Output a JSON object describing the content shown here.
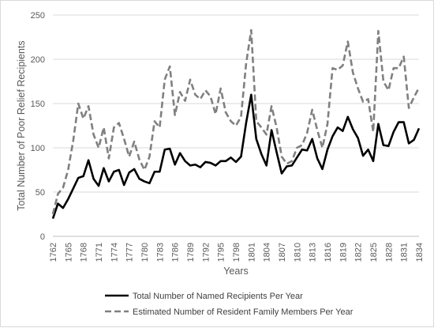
{
  "chart_data": {
    "type": "line",
    "title": "",
    "xlabel": "Years",
    "ylabel": "Total Number of Poor Relief Recipients",
    "ylim": [
      0,
      250
    ],
    "yticks": [
      0,
      50,
      100,
      150,
      200,
      250
    ],
    "xlim": [
      1762,
      1834
    ],
    "xticks": [
      1762,
      1765,
      1768,
      1771,
      1774,
      1777,
      1780,
      1783,
      1786,
      1789,
      1792,
      1795,
      1798,
      1801,
      1804,
      1807,
      1810,
      1813,
      1816,
      1819,
      1822,
      1825,
      1828,
      1831,
      1834
    ],
    "grid": true,
    "legend_position": "bottom",
    "x": [
      1762,
      1763,
      1764,
      1765,
      1766,
      1767,
      1768,
      1769,
      1770,
      1771,
      1772,
      1773,
      1774,
      1775,
      1776,
      1777,
      1778,
      1779,
      1780,
      1781,
      1782,
      1783,
      1784,
      1785,
      1786,
      1787,
      1788,
      1789,
      1790,
      1791,
      1792,
      1793,
      1794,
      1795,
      1796,
      1797,
      1798,
      1799,
      1800,
      1801,
      1802,
      1803,
      1804,
      1805,
      1806,
      1807,
      1808,
      1809,
      1810,
      1811,
      1812,
      1813,
      1814,
      1815,
      1816,
      1817,
      1818,
      1819,
      1820,
      1821,
      1822,
      1823,
      1824,
      1825,
      1826,
      1827,
      1828,
      1829,
      1830,
      1831,
      1832,
      1833,
      1834
    ],
    "series": [
      {
        "name": "Total Number of Named Recipients Per Year",
        "color": "#000000",
        "style": "solid",
        "values": [
          20,
          37,
          32,
          42,
          54,
          66,
          68,
          86,
          65,
          57,
          77,
          62,
          73,
          75,
          58,
          72,
          76,
          65,
          62,
          60,
          73,
          73,
          98,
          99,
          81,
          94,
          85,
          80,
          81,
          78,
          84,
          83,
          80,
          85,
          85,
          89,
          84,
          90,
          128,
          160,
          110,
          93,
          80,
          120,
          95,
          71,
          79,
          80,
          89,
          98,
          97,
          110,
          88,
          76,
          98,
          113,
          123,
          119,
          135,
          121,
          111,
          91,
          98,
          85,
          127,
          103,
          102,
          118,
          129,
          129,
          105,
          109,
          122
        ]
      },
      {
        "name": "Estimated Number of Resident Family Members Per Year",
        "color": "#808080",
        "style": "dashed",
        "values": [
          25,
          48,
          55,
          75,
          108,
          150,
          133,
          147,
          115,
          100,
          123,
          88,
          123,
          128,
          110,
          90,
          107,
          87,
          75,
          90,
          130,
          123,
          177,
          192,
          137,
          163,
          153,
          177,
          160,
          155,
          165,
          158,
          138,
          167,
          140,
          130,
          125,
          135,
          195,
          233,
          130,
          123,
          115,
          147,
          123,
          90,
          82,
          85,
          100,
          103,
          117,
          143,
          120,
          100,
          127,
          190,
          188,
          193,
          220,
          185,
          167,
          152,
          155,
          118,
          232,
          175,
          165,
          190,
          190,
          203,
          145,
          157,
          168
        ]
      }
    ]
  }
}
